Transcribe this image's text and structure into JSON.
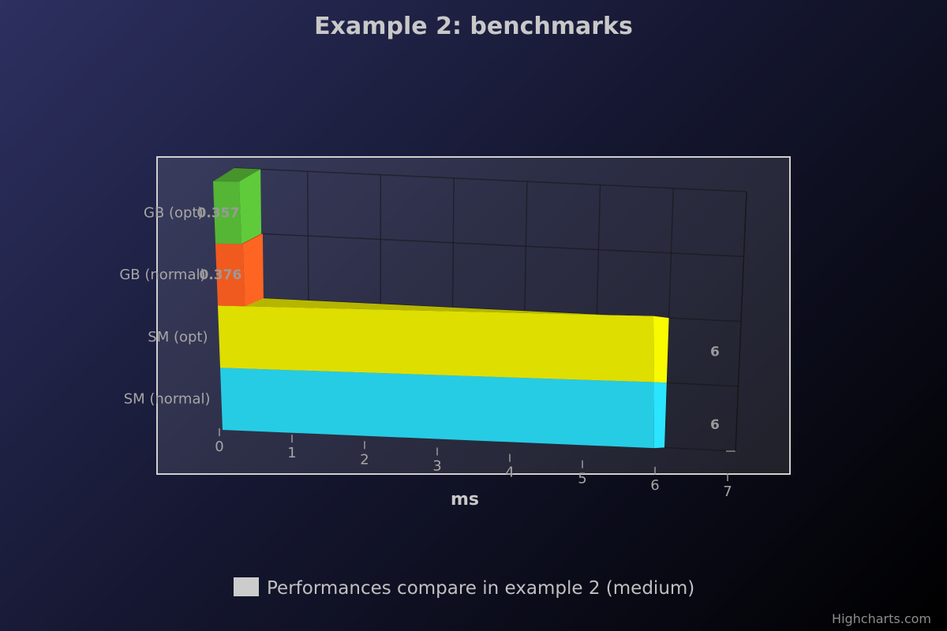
{
  "chart_data": {
    "type": "bar",
    "orientation": "horizontal",
    "title": "Example 2: benchmarks",
    "categories": [
      "GB (opt)",
      "GB (normal)",
      "SM (opt)",
      "SM (normal)"
    ],
    "xlabel": "ms",
    "xlim": [
      0,
      7
    ],
    "ticks": [
      "0",
      "1",
      "2",
      "3",
      "4",
      "5",
      "6",
      "7"
    ],
    "grid": true,
    "legend_position": "bottom",
    "series": [
      {
        "name": "Performances compare in example 2 (medium)",
        "values": [
          0.357,
          0.376,
          6,
          6
        ],
        "data_labels": [
          "0.357",
          "0.376",
          "6",
          "6"
        ],
        "colors": [
          "#55b535",
          "#f05a1e",
          "#dede00",
          "#26cce4"
        ]
      }
    ],
    "legend_swatch_color": "#cccccc",
    "credit": "Highcharts.com"
  }
}
